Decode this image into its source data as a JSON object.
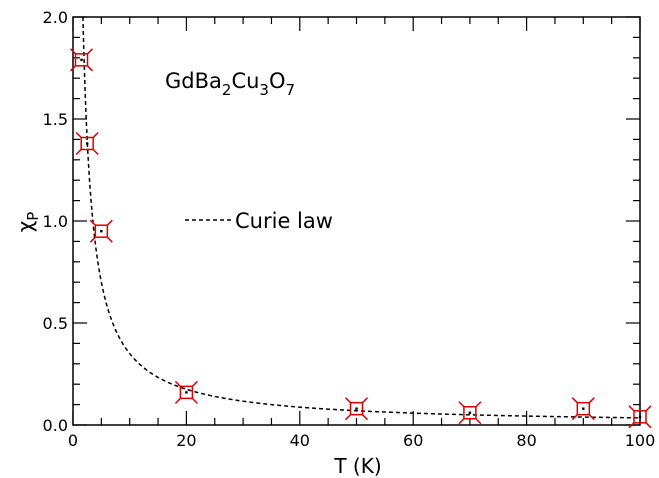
{
  "chart_data": {
    "type": "scatter",
    "xlabel": "T (K)",
    "ylabel_symbol": "χ",
    "ylabel_subscript": "P",
    "xlim": [
      0,
      100
    ],
    "ylim": [
      0,
      2.0
    ],
    "x_ticks": [
      0,
      20,
      40,
      60,
      80,
      100
    ],
    "x_tick_labels": [
      "0",
      "20",
      "40",
      "60",
      "80",
      "100"
    ],
    "y_ticks": [
      0,
      0.5,
      1.0,
      1.5,
      2.0
    ],
    "y_tick_labels": [
      "0.0",
      "0.5",
      "1.0",
      "1.5",
      "2.0"
    ],
    "grid": false,
    "annotation": {
      "parts": [
        "GdBa",
        "2",
        "Cu",
        "3",
        "O",
        "7"
      ]
    },
    "legend": {
      "label": "Curie law",
      "placement": "center-left"
    },
    "series": [
      {
        "marker": "square-with-cross",
        "color": "#dd0000",
        "x": [
          1.5,
          2.5,
          5,
          20,
          50,
          70,
          90,
          100
        ],
        "y": [
          1.79,
          1.38,
          0.95,
          0.16,
          0.08,
          0.06,
          0.08,
          0.04
        ]
      },
      {
        "line": "dashed",
        "color": "#000000",
        "function": "C/T",
        "C": 3.5,
        "x_start": 1.75,
        "x_end": 100
      }
    ]
  }
}
